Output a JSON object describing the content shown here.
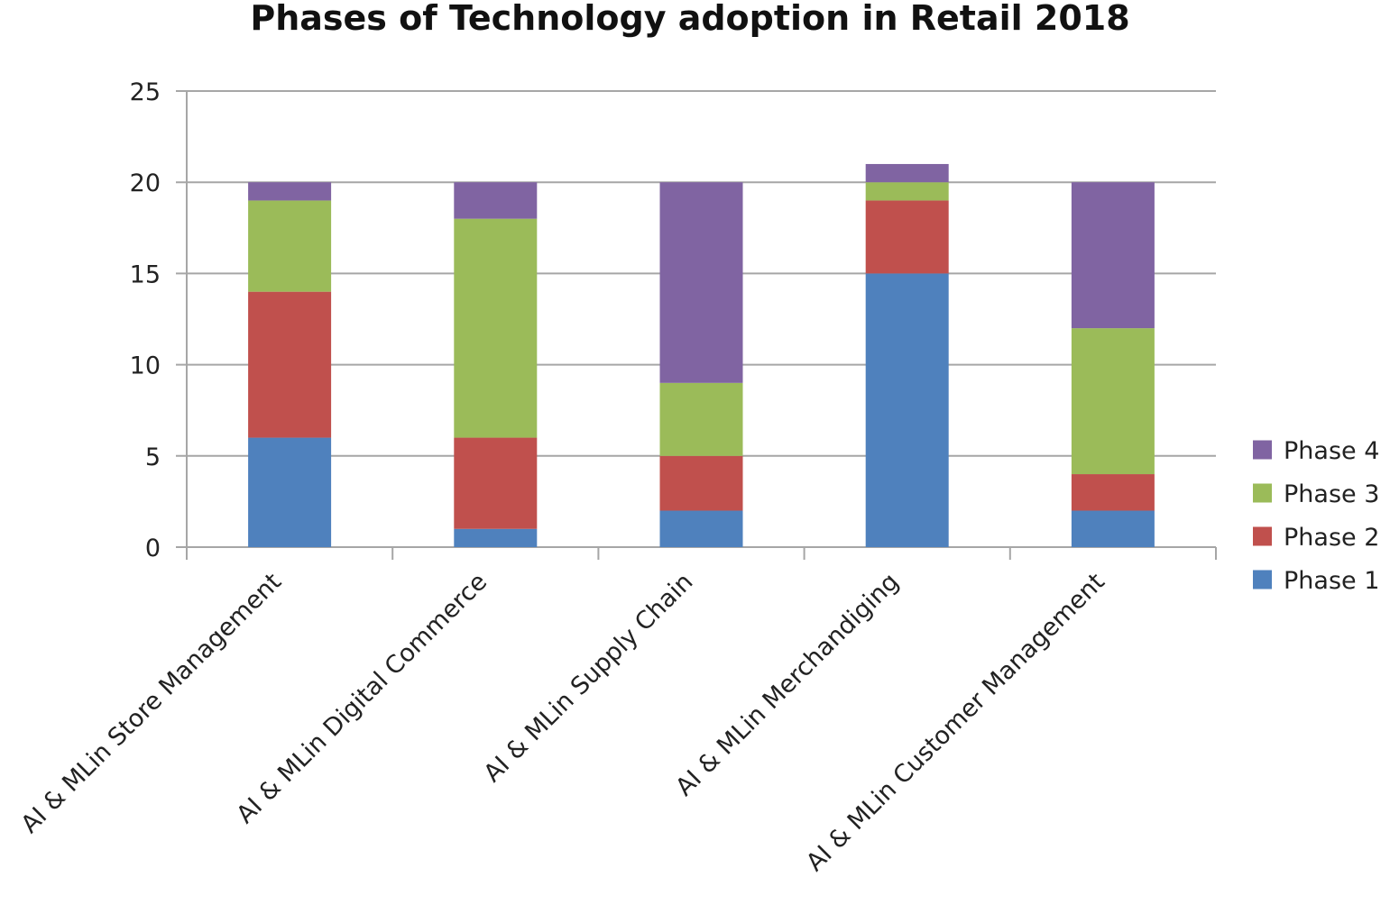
{
  "chart_data": {
    "type": "bar",
    "stacked": true,
    "title": "Phases of Technology adoption in Retail 2018",
    "xlabel": "",
    "ylabel": "",
    "ylim": [
      0,
      25
    ],
    "yticks": [
      "0",
      "5",
      "10",
      "15",
      "20",
      "25"
    ],
    "grid": true,
    "legend_position": "right",
    "categories": [
      "AI & MLin Store Management",
      "AI & MLin Digital Commerce",
      "AI & MLin Supply Chain",
      "AI & MLin Merchandiging",
      "AI  & MLin Customer Management"
    ],
    "series": [
      {
        "name": "Phase 1",
        "color": "#4f81bd",
        "values": [
          6,
          1,
          2,
          15,
          2
        ]
      },
      {
        "name": "Phase 2",
        "color": "#c0504d",
        "values": [
          8,
          5,
          3,
          4,
          2
        ]
      },
      {
        "name": "Phase 3",
        "color": "#9bbb59",
        "values": [
          5,
          12,
          4,
          1,
          8
        ]
      },
      {
        "name": "Phase 4",
        "color": "#8064a2",
        "values": [
          1,
          2,
          11,
          1,
          8
        ]
      }
    ],
    "colors": {
      "grid": "#a6a6a6",
      "axis": "#a6a6a6"
    }
  }
}
